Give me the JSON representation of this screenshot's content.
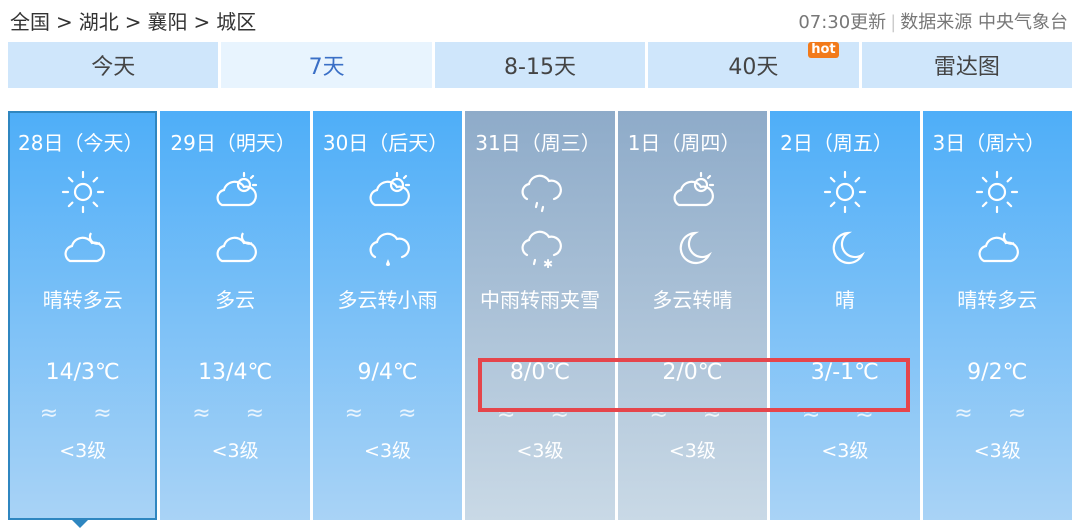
{
  "breadcrumb": [
    "全国",
    ">",
    "湖北",
    ">",
    "襄阳",
    ">",
    "城区"
  ],
  "update_time": "07:30更新",
  "source": "数据来源 中央气象台",
  "tabs": [
    {
      "label": "今天"
    },
    {
      "label": "7天",
      "active": true
    },
    {
      "label": "8-15天"
    },
    {
      "label": "40天",
      "badge": "hot"
    },
    {
      "label": "雷达图"
    }
  ],
  "days": [
    {
      "date": "28日（今天）",
      "icon_day": "sun-icon",
      "icon_night": "cloud-night-icon",
      "desc": "晴转多云",
      "temp": "14/3℃",
      "wind": "≈ ≈",
      "level": "<3级"
    },
    {
      "date": "29日（明天）",
      "icon_day": "partly-cloudy-icon",
      "icon_night": "cloud-night-icon",
      "desc": "多云",
      "temp": "13/4℃",
      "wind": "≈ ≈",
      "level": "<3级"
    },
    {
      "date": "30日（后天）",
      "icon_day": "partly-cloudy-icon",
      "icon_night": "light-rain-icon",
      "desc": "多云转小雨",
      "temp": "9/4℃",
      "wind": "≈ ≈",
      "level": "<3级"
    },
    {
      "date": "31日（周三）",
      "icon_day": "rain-icon",
      "icon_night": "sleet-icon",
      "desc": "中雨转雨夹雪",
      "temp": "8/0℃",
      "wind": "≈ ≈",
      "level": "<3级"
    },
    {
      "date": "1日（周四）",
      "icon_day": "partly-cloudy-icon",
      "icon_night": "moon-icon",
      "desc": "多云转晴",
      "temp": "2/0℃",
      "wind": "≈ ≈",
      "level": "<3级"
    },
    {
      "date": "2日（周五）",
      "icon_day": "sun-icon",
      "icon_night": "moon-icon",
      "desc": "晴",
      "temp": "3/-1℃",
      "wind": "≈ ≈",
      "level": "<3级"
    },
    {
      "date": "3日（周六）",
      "icon_day": "sun-icon",
      "icon_night": "cloud-night-icon",
      "desc": "晴转多云",
      "temp": "9/2℃",
      "wind": "≈ ≈",
      "level": "<3级"
    }
  ],
  "colors": {
    "tab": "#cfe6fb",
    "active_tab_text": "#3a6fc6",
    "highlight_box": "#e5454b",
    "hot": "#f27a1a"
  }
}
